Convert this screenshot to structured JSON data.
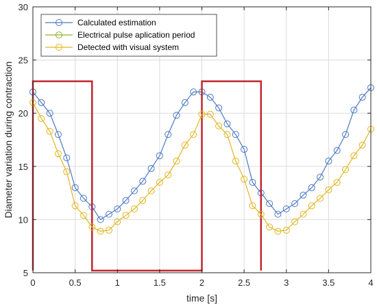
{
  "chart_data": {
    "type": "line",
    "xlabel": "time [s]",
    "ylabel": "Diameter variation during contraction",
    "xlim": [
      0,
      4
    ],
    "ylim": [
      5,
      30
    ],
    "xticks": [
      0,
      0.5,
      1,
      1.5,
      2,
      2.5,
      3,
      3.5,
      4
    ],
    "xtick_labels": [
      "0",
      "0.5",
      "1",
      "1.5",
      "2",
      "2.5",
      "3",
      "3.5",
      "4"
    ],
    "yticks": [
      5,
      10,
      15,
      20,
      25,
      30
    ],
    "ytick_labels": [
      "5",
      "10",
      "15",
      "20",
      "25",
      "30"
    ],
    "grid": true,
    "legend_position": "top-left",
    "series": [
      {
        "name": "Calculated estimation",
        "color": "#4a78c4",
        "marker": "circle",
        "x": [
          0.0,
          0.1,
          0.2,
          0.3,
          0.4,
          0.5,
          0.6,
          0.7,
          0.8,
          0.9,
          1.0,
          1.1,
          1.2,
          1.3,
          1.4,
          1.5,
          1.6,
          1.7,
          1.8,
          1.9,
          2.0,
          2.1,
          2.2,
          2.3,
          2.4,
          2.5,
          2.6,
          2.7,
          2.8,
          2.9,
          3.0,
          3.1,
          3.2,
          3.3,
          3.4,
          3.5,
          3.6,
          3.7,
          3.8,
          3.9,
          4.0
        ],
        "y": [
          22.0,
          21.0,
          20.0,
          18.0,
          15.8,
          13.0,
          12.0,
          11.2,
          10.0,
          10.5,
          11.0,
          11.8,
          12.7,
          13.6,
          14.8,
          16.0,
          18.0,
          19.8,
          21.0,
          22.0,
          22.0,
          21.5,
          20.5,
          19.0,
          18.0,
          16.6,
          13.5,
          12.5,
          11.5,
          10.5,
          11.0,
          11.5,
          12.3,
          13.0,
          14.0,
          15.5,
          16.5,
          18.0,
          20.3,
          21.5,
          22.4
        ]
      },
      {
        "name": "Electrical pulse aplication period",
        "color": "#c0272d",
        "type": "step",
        "x": [
          0.0,
          0.0,
          0.7,
          0.7,
          2.0,
          2.0,
          2.7,
          2.7
        ],
        "y": [
          5.2,
          23.0,
          23.0,
          5.2,
          5.2,
          23.0,
          23.0,
          5.2
        ]
      },
      {
        "name": "Detected with visual system",
        "color": "#e3b520",
        "marker": "circle",
        "x": [
          0.0,
          0.1,
          0.2,
          0.3,
          0.4,
          0.5,
          0.6,
          0.7,
          0.8,
          0.9,
          1.0,
          1.1,
          1.2,
          1.3,
          1.4,
          1.5,
          1.6,
          1.7,
          1.8,
          1.9,
          2.0,
          2.1,
          2.2,
          2.3,
          2.4,
          2.5,
          2.6,
          2.7,
          2.8,
          2.9,
          3.0,
          3.1,
          3.2,
          3.3,
          3.4,
          3.5,
          3.6,
          3.7,
          3.8,
          3.9,
          4.0
        ],
        "y": [
          21.0,
          19.5,
          18.3,
          16.2,
          14.5,
          11.3,
          10.4,
          9.3,
          8.9,
          9.0,
          9.8,
          10.4,
          11.0,
          11.8,
          12.7,
          13.5,
          14.2,
          15.5,
          17.0,
          18.0,
          19.9,
          19.9,
          18.8,
          18.0,
          15.5,
          13.8,
          11.3,
          10.5,
          9.3,
          8.9,
          9.0,
          9.8,
          10.5,
          11.3,
          12.0,
          12.8,
          13.5,
          14.7,
          16.0,
          17.0,
          18.5
        ]
      }
    ]
  }
}
